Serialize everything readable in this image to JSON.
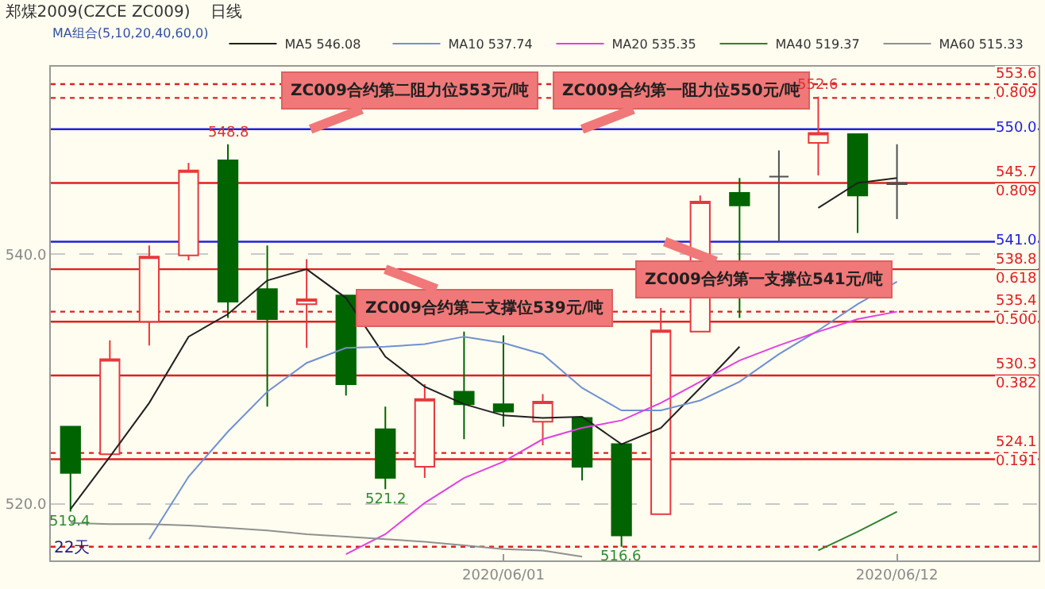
{
  "chart_data": {
    "type": "candlestick",
    "title": "郑煤2009(CZCE ZC009)",
    "subtitle": "日线",
    "legend_title": "MA组合(5,10,20,40,60,0)",
    "categories": [
      null,
      null,
      null,
      null,
      null,
      null,
      null,
      null,
      null,
      null,
      null,
      "2020/06/01",
      null,
      null,
      null,
      null,
      null,
      null,
      null,
      null,
      null,
      "2020/06/12"
    ],
    "ohlc": [
      [
        526.2,
        526.2,
        519.4,
        522.5
      ],
      [
        524.0,
        533.1,
        524.0,
        531.6
      ],
      [
        534.6,
        540.7,
        532.7,
        539.8
      ],
      [
        539.9,
        547.3,
        539.5,
        546.7
      ],
      [
        547.5,
        548.8,
        534.9,
        536.2
      ],
      [
        537.2,
        540.7,
        527.8,
        534.8
      ],
      [
        536.0,
        539.6,
        532.5,
        536.4
      ],
      [
        536.7,
        536.7,
        528.7,
        529.6
      ],
      [
        526.0,
        527.8,
        521.2,
        522.1
      ],
      [
        523.0,
        529.6,
        522.1,
        528.4
      ],
      [
        529.0,
        533.8,
        525.2,
        528.0
      ],
      [
        528.0,
        533.5,
        526.2,
        527.4
      ],
      [
        526.6,
        528.8,
        524.7,
        528.2
      ],
      [
        526.9,
        526.9,
        521.9,
        523.0
      ],
      [
        524.8,
        524.8,
        516.6,
        517.5
      ],
      [
        519.2,
        535.7,
        519.2,
        533.9
      ],
      [
        533.8,
        544.7,
        533.8,
        544.2
      ],
      [
        544.9,
        546.1,
        534.9,
        543.9
      ],
      [
        546.2,
        548.3,
        541.0,
        546.2
      ],
      [
        548.9,
        552.6,
        546.3,
        549.7
      ],
      [
        549.6,
        549.6,
        541.7,
        544.7
      ],
      [
        545.7,
        548.8,
        542.8,
        545.6
      ]
    ],
    "colors": [
      "#006400",
      "#e8383d",
      "#e8383d",
      "#e8383d",
      "#006400",
      "#006400",
      "#e8383d",
      "#006400",
      "#006400",
      "#e8383d",
      "#006400",
      "#006400",
      "#e8383d",
      "#006400",
      "#006400",
      "#e8383d",
      "#e8383d",
      "#006400",
      "#505050",
      "#e8383d",
      "#006400",
      "#505050"
    ],
    "series": [
      {
        "name": "MA5 546.08",
        "type": "line",
        "color": "#202020",
        "values": [
          519.6,
          523.8,
          528.1,
          533.4,
          535.2,
          537.9,
          538.8,
          536.5,
          531.8,
          529.4,
          528.0,
          527.1,
          526.9,
          527.0,
          524.8,
          526.1,
          529.3,
          532.6,
          null,
          543.7,
          545.7,
          546.1
        ]
      },
      {
        "name": "MA10 537.74",
        "type": "line",
        "color": "#7090d0",
        "values": [
          null,
          null,
          517.2,
          522.2,
          525.8,
          529.0,
          531.3,
          532.5,
          532.6,
          532.8,
          533.4,
          532.9,
          532.0,
          529.3,
          527.5,
          527.5,
          528.3,
          529.8,
          532.0,
          533.9,
          536.0,
          537.8
        ]
      },
      {
        "name": "MA20 535.35",
        "type": "line",
        "color": "#e040e0",
        "values": [
          null,
          null,
          null,
          null,
          null,
          null,
          null,
          516.0,
          517.6,
          520.1,
          522.1,
          523.4,
          525.2,
          526.1,
          526.7,
          528.1,
          529.8,
          531.5,
          532.7,
          533.8,
          534.8,
          535.4
        ]
      },
      {
        "name": "MA40 519.37",
        "type": "line",
        "color": "#308030",
        "values": [
          null,
          null,
          null,
          null,
          null,
          null,
          null,
          null,
          null,
          null,
          null,
          null,
          null,
          null,
          null,
          null,
          null,
          null,
          null,
          516.3,
          517.8,
          519.4
        ]
      },
      {
        "name": "MA60 515.33",
        "type": "line",
        "color": "#909090",
        "values": [
          518.5,
          518.4,
          518.4,
          518.3,
          518.1,
          517.9,
          517.6,
          517.4,
          517.2,
          517.0,
          516.7,
          516.4,
          516.3,
          515.8,
          null,
          null,
          null,
          null,
          null,
          null,
          null,
          null
        ]
      }
    ],
    "ylim": [
      515.5,
      555.0
    ],
    "yticks": [
      {
        "value": 540,
        "label": "540.0"
      },
      {
        "value": 520,
        "label": "520.0"
      }
    ],
    "grid": "y",
    "legend": "top",
    "line_style": "solid",
    "marker": "none",
    "ref_lines": [
      {
        "axis": "y",
        "value": 553.6,
        "label": "553.6\n0.809",
        "color": "#e02020",
        "line_style": "dotted"
      },
      {
        "axis": "y",
        "value": 552.5,
        "color": "#e02020",
        "line_style": "dotted"
      },
      {
        "axis": "y",
        "value": 550.0,
        "label": "550.0",
        "color": "#2020e0",
        "line_style": "solid"
      },
      {
        "axis": "y",
        "value": 545.7,
        "label": "545.7\n0.809",
        "color": "#e02020",
        "line_style": "solid"
      },
      {
        "axis": "y",
        "value": 541.0,
        "label": "541.0",
        "color": "#2020e0",
        "line_style": "solid"
      },
      {
        "axis": "y",
        "value": 538.8,
        "label": "538.8\n0.618",
        "color": "#e02020",
        "line_style": "solid"
      },
      {
        "axis": "y",
        "value": 535.4,
        "label": "535.4\n0.500",
        "color": "#e02020",
        "line_style": "dotted"
      },
      {
        "axis": "y",
        "value": 534.6,
        "color": "#e02020",
        "line_style": "solid"
      },
      {
        "axis": "y",
        "value": 530.3,
        "label": "530.3\n0.382",
        "color": "#e02020",
        "line_style": "solid"
      },
      {
        "axis": "y",
        "value": 524.1,
        "label": "524.1\n0.191",
        "color": "#e02020",
        "line_style": "dotted"
      },
      {
        "axis": "y",
        "value": 523.6,
        "color": "#e02020",
        "line_style": "solid"
      },
      {
        "axis": "y",
        "value": 516.6,
        "color": "#e02020",
        "line_style": "dotted"
      }
    ],
    "annotations": [
      {
        "text": "ZC009合约第二阻力位553元/吨",
        "y": 550.0
      },
      {
        "text": "ZC009合约第一阻力位550元/吨",
        "y": 550.0
      },
      {
        "text": "ZC009合约第二支撑位539元/吨",
        "y": 538.8
      },
      {
        "text": "ZC009合约第一支撑位541元/吨",
        "y": 541.0
      },
      {
        "text": "548.8",
        "y": 548.8
      },
      {
        "text": "552.6",
        "y": 552.6
      },
      {
        "text": "519.4",
        "y": 519.4
      },
      {
        "text": "521.2",
        "y": 521.2
      },
      {
        "text": "516.6",
        "y": 516.6
      },
      "22天"
    ]
  }
}
